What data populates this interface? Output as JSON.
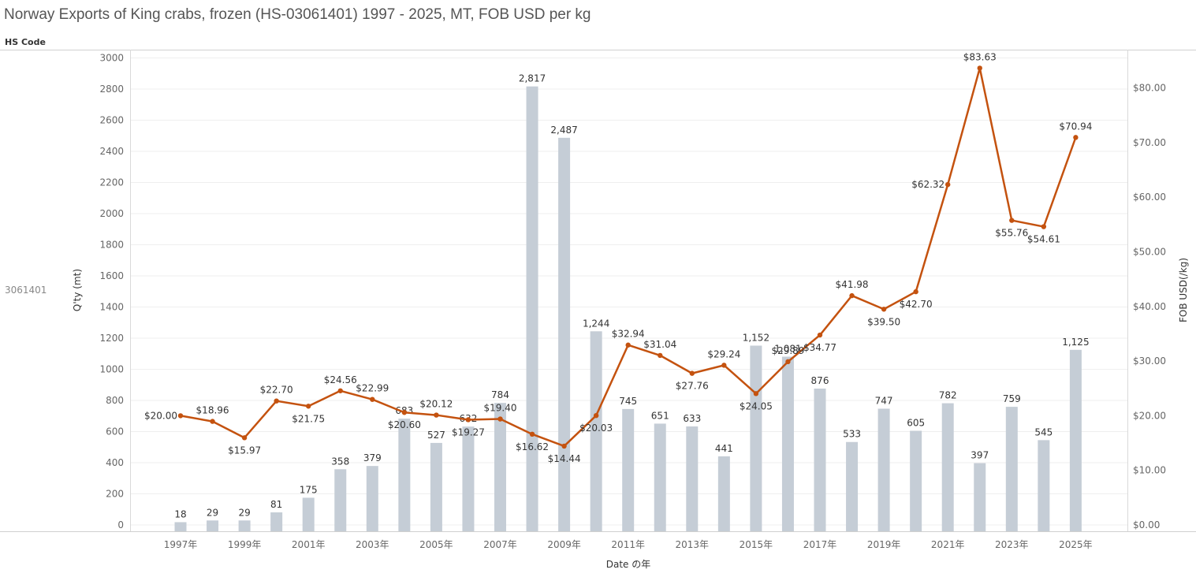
{
  "title": "Norway Exports of King crabs, frozen (HS-03061401) 1997 - 2025, MT, FOB USD per kg",
  "row_header": "HS Code",
  "row_value": "3061401",
  "chart_data": {
    "type": "bar+line",
    "title": "Norway Exports of King crabs, frozen (HS-03061401) 1997 - 2025, MT, FOB USD per kg",
    "xlabel": "Date の年",
    "ylabel": "Q'ty (mt)",
    "y2label": "FOB USD(/kg)",
    "ylim": [
      0,
      3000
    ],
    "y2lim": [
      0,
      87
    ],
    "y_ticks": [
      0,
      200,
      400,
      600,
      800,
      1000,
      1200,
      1400,
      1600,
      1800,
      2000,
      2200,
      2400,
      2600,
      2800,
      3000
    ],
    "y2_ticks": [
      "$0.00",
      "$10.00",
      "$20.00",
      "$30.00",
      "$40.00",
      "$50.00",
      "$60.00",
      "$70.00",
      "$80.00"
    ],
    "y2_tick_values": [
      0,
      10,
      20,
      30,
      40,
      50,
      60,
      70,
      80
    ],
    "x_tick_labels": [
      "1997年",
      "1999年",
      "2001年",
      "2003年",
      "2005年",
      "2007年",
      "2009年",
      "2011年",
      "2013年",
      "2015年",
      "2017年",
      "2019年",
      "2021年",
      "2023年",
      "2025年"
    ],
    "years": [
      1997,
      1998,
      1999,
      2000,
      2001,
      2002,
      2003,
      2004,
      2005,
      2006,
      2007,
      2008,
      2009,
      2010,
      2011,
      2012,
      2013,
      2014,
      2015,
      2016,
      2017,
      2018,
      2019,
      2020,
      2021,
      2022,
      2023,
      2024,
      2025
    ],
    "series": [
      {
        "name": "Q'ty (mt)",
        "type": "bar",
        "color": "#c5cdd6",
        "values": [
          18,
          29,
          29,
          81,
          175,
          358,
          379,
          683,
          527,
          632,
          784,
          2817,
          2487,
          1244,
          745,
          651,
          633,
          441,
          1152,
          1081,
          876,
          533,
          747,
          605,
          782,
          397,
          759,
          545,
          1125
        ],
        "labels": [
          "18",
          "29",
          "29",
          "81",
          "175",
          "358",
          "379",
          "683",
          "527",
          "632",
          "784",
          "2,817",
          "2,487",
          "1,244",
          "745",
          "651",
          "633",
          "441",
          "1,152",
          "1,081",
          "876",
          "533",
          "747",
          "605",
          "782",
          "397",
          "759",
          "545",
          "1,125"
        ]
      },
      {
        "name": "FOB USD(/kg)",
        "type": "line",
        "color": "#c4520f",
        "values": [
          20.0,
          18.96,
          15.97,
          22.7,
          21.75,
          24.56,
          22.99,
          20.6,
          20.12,
          19.27,
          19.4,
          16.62,
          14.44,
          20.03,
          32.94,
          31.04,
          27.76,
          29.24,
          24.05,
          29.89,
          34.77,
          41.98,
          39.5,
          42.7,
          62.32,
          83.63,
          55.76,
          54.61,
          70.94
        ],
        "labels": [
          "$20.00",
          "$18.96",
          "$15.97",
          "$22.70",
          "$21.75",
          "$24.56",
          "$22.99",
          "$20.60",
          "$20.12",
          "$19.27",
          "$19.40",
          "$16.62",
          "$14.44",
          "$20.03",
          "$32.94",
          "$31.04",
          "$27.76",
          "$29.24",
          "$24.05",
          "$29.89",
          "$34.77",
          "$41.98",
          "$39.50",
          "$42.70",
          "$62.32",
          "$83.63",
          "$55.76",
          "$54.61",
          "$70.94"
        ],
        "label_positions": [
          "left",
          "above",
          "below",
          "above",
          "below",
          "above",
          "above",
          "below",
          "above",
          "below",
          "above",
          "below",
          "below",
          "below",
          "above",
          "above",
          "below",
          "above",
          "below",
          "above",
          "below",
          "above",
          "below",
          "below",
          "left",
          "above",
          "below",
          "below",
          "above"
        ]
      }
    ]
  }
}
